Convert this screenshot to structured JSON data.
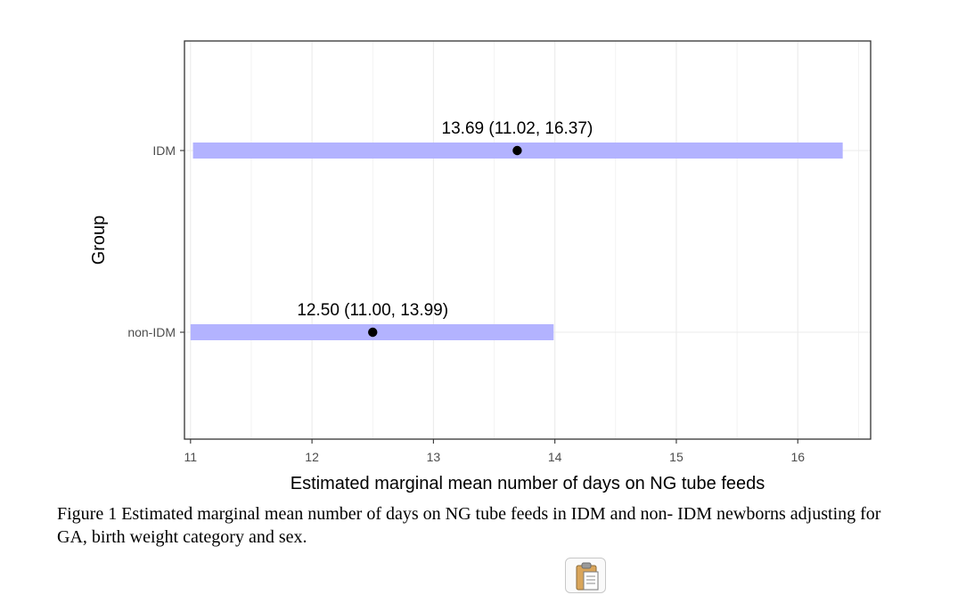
{
  "chart_data": {
    "type": "interval",
    "xlabel": "Estimated marginal mean number of days on NG tube feeds",
    "ylabel": "Group",
    "xlim": [
      10.95,
      16.6
    ],
    "xticks": [
      "11",
      "12",
      "13",
      "14",
      "15",
      "16"
    ],
    "grid": true,
    "series": [
      {
        "group": "IDM",
        "mean": 13.69,
        "lower": 11.02,
        "upper": 16.37,
        "label": "13.69 (11.02, 16.37)"
      },
      {
        "group": "non-IDM",
        "mean": 12.5,
        "lower": 11.0,
        "upper": 13.99,
        "label": "12.50 (11.00, 13.99)"
      }
    ],
    "colors": {
      "interval": "#b3b3ff",
      "point": "#000000",
      "grid": "#ebebeb",
      "panel_border": "#333333"
    }
  },
  "caption": "Figure 1 Estimated marginal mean number of days on NG tube feeds in IDM and non- IDM newborns adjusting for GA, birth weight category and sex.",
  "paste_button_icon": "clipboard-icon"
}
